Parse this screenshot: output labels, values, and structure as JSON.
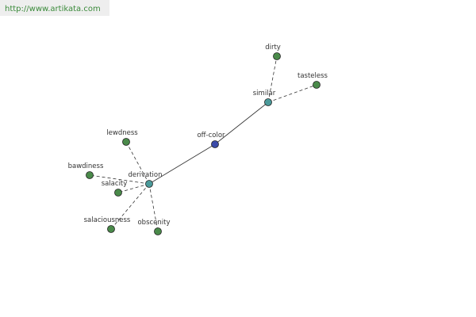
{
  "header": {
    "url": "http://www.artikata.com"
  },
  "nodes": [
    {
      "label": "off-color"
    },
    {
      "label": "similar"
    },
    {
      "label": "dirty"
    },
    {
      "label": "tasteless"
    },
    {
      "label": "derivation"
    },
    {
      "label": "lewdness"
    },
    {
      "label": "bawdiness"
    },
    {
      "label": "salacity"
    },
    {
      "label": "salaciousness"
    },
    {
      "label": "obscenity"
    }
  ]
}
